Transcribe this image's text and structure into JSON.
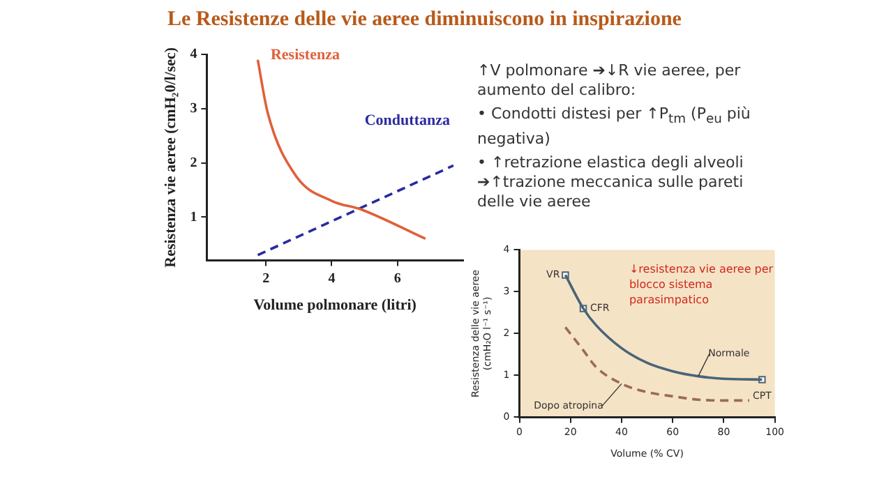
{
  "chart_data": [
    {
      "type": "line",
      "title": "Le Resistenze delle vie aeree diminuiscono in inspirazione",
      "xlabel": "Volume polmonare (litri)",
      "ylabel": "Resistenza vie aeree (cmH₂0/l/sec)",
      "xlim": [
        0.2,
        8
      ],
      "ylim": [
        0.2,
        4
      ],
      "xticks": [
        2,
        4,
        6
      ],
      "yticks": [
        1,
        2,
        3,
        4
      ],
      "grid": false,
      "series": [
        {
          "name": "Resistenza",
          "color": "#e0603a",
          "line_style": "solid",
          "x": [
            1.75,
            2.05,
            2.9,
            4.0,
            4.9,
            6.85
          ],
          "values": [
            3.9,
            2.93,
            1.77,
            1.3,
            1.14,
            0.6
          ]
        },
        {
          "name": "Conduttanza",
          "color": "#2a2aa0",
          "line_style": "dashed",
          "x": [
            1.75,
            7.7
          ],
          "values": [
            0.3,
            1.95
          ]
        }
      ]
    },
    {
      "type": "other",
      "annotations": [
        "↑V polmonare ➔↓R vie aeree, per aumento del calibro:",
        "• Condotti distesi per ↑P$_{tm}$ (P$_{eu}$ più negativa)",
        "• ↑retrazione elastica degli alveoli ➔↑trazione meccanica sulle pareti delle vie aeree"
      ]
    },
    {
      "type": "line",
      "xlabel": "Volume (% CV)",
      "ylabel": "Resistenza delle vie aeree (cmH₂O l⁻¹ s⁻¹)",
      "xlim": [
        0,
        100
      ],
      "ylim": [
        0,
        4
      ],
      "xticks": [
        0,
        20,
        40,
        60,
        80,
        100
      ],
      "yticks": [
        0,
        1,
        2,
        3,
        4
      ],
      "grid": false,
      "annotations": [
        "↓resistenza vie aeree per blocco sistema parasimpatico",
        {
          "text": "VR",
          "x": 18,
          "y": 3.4
        },
        {
          "text": "CFR",
          "x": 25,
          "y": 2.6
        },
        {
          "text": "CPT",
          "x": 95,
          "y": 0.9
        }
      ],
      "series": [
        {
          "name": "Normale",
          "color": "#4a6478",
          "line_style": "solid",
          "x": [
            18,
            25,
            30,
            40,
            50,
            60,
            70,
            80,
            95
          ],
          "values": [
            3.4,
            2.6,
            2.2,
            1.65,
            1.3,
            1.1,
            0.98,
            0.92,
            0.9
          ]
        },
        {
          "name": "Dopo atropina",
          "color": "#9a6a5a",
          "line_style": "dashed",
          "x": [
            18,
            25,
            30,
            40,
            50,
            60,
            70,
            80,
            90
          ],
          "values": [
            2.15,
            1.6,
            1.2,
            0.8,
            0.6,
            0.5,
            0.42,
            0.4,
            0.4
          ]
        },
        {
          "type": "scatter",
          "color": "#4a6478",
          "marker": "square",
          "x": [
            18,
            25,
            95
          ],
          "values": [
            3.4,
            2.6,
            0.9
          ]
        }
      ]
    }
  ]
}
